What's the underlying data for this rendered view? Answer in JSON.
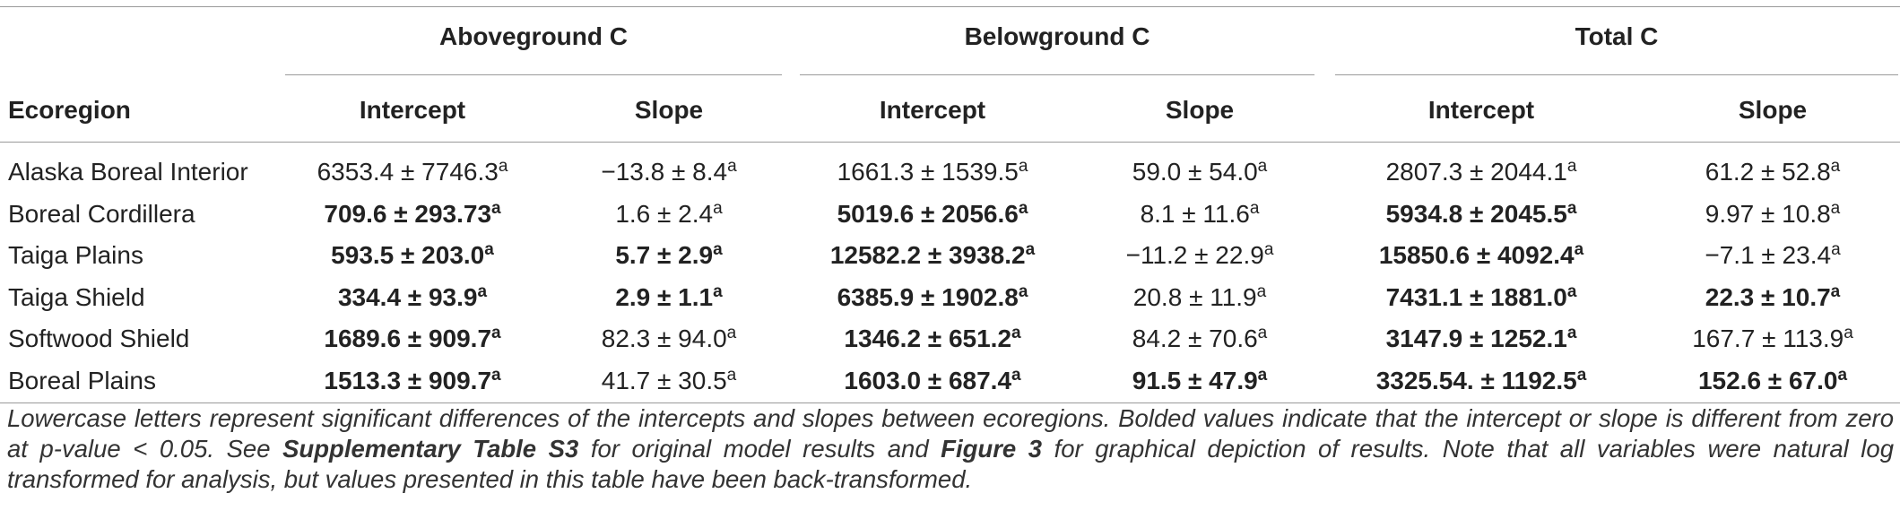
{
  "header": {
    "groups": [
      "Aboveground C",
      "Belowground C",
      "Total C"
    ],
    "columns": [
      "Ecoregion",
      "Intercept",
      "Slope",
      "Intercept",
      "Slope",
      "Intercept",
      "Slope"
    ]
  },
  "table": {
    "rows": [
      {
        "ecoregion": "Alaska Boreal Interior",
        "cells": [
          {
            "text": "6353.4 ± 7746.3",
            "sup": "a",
            "bold": false
          },
          {
            "text": "−13.8 ± 8.4",
            "sup": "a",
            "bold": false
          },
          {
            "text": "1661.3 ± 1539.5",
            "sup": "a",
            "bold": false
          },
          {
            "text": "59.0 ± 54.0",
            "sup": "a",
            "bold": false
          },
          {
            "text": "2807.3 ± 2044.1",
            "sup": "a",
            "bold": false
          },
          {
            "text": "61.2 ± 52.8",
            "sup": "a",
            "bold": false
          }
        ]
      },
      {
        "ecoregion": "Boreal Cordillera",
        "cells": [
          {
            "text": "709.6 ± 293.73",
            "sup": "a",
            "bold": true
          },
          {
            "text": "1.6 ± 2.4",
            "sup": "a",
            "bold": false
          },
          {
            "text": "5019.6 ± 2056.6",
            "sup": "a",
            "bold": true
          },
          {
            "text": "8.1 ± 11.6",
            "sup": "a",
            "bold": false
          },
          {
            "text": "5934.8 ± 2045.5",
            "sup": "a",
            "bold": true
          },
          {
            "text": "9.97 ± 10.8",
            "sup": "a",
            "bold": false
          }
        ]
      },
      {
        "ecoregion": "Taiga Plains",
        "cells": [
          {
            "text": "593.5 ± 203.0",
            "sup": "a",
            "bold": true
          },
          {
            "text": "5.7 ± 2.9",
            "sup": "a",
            "bold": true
          },
          {
            "text": "12582.2 ± 3938.2",
            "sup": "a",
            "bold": true
          },
          {
            "text": "−11.2 ± 22.9",
            "sup": "a",
            "bold": false
          },
          {
            "text": "15850.6 ± 4092.4",
            "sup": "a",
            "bold": true
          },
          {
            "text": "−7.1 ± 23.4",
            "sup": "a",
            "bold": false
          }
        ]
      },
      {
        "ecoregion": "Taiga Shield",
        "cells": [
          {
            "text": "334.4 ± 93.9",
            "sup": "a",
            "bold": true
          },
          {
            "text": "2.9 ± 1.1",
            "sup": "a",
            "bold": true
          },
          {
            "text": "6385.9 ± 1902.8",
            "sup": "a",
            "bold": true
          },
          {
            "text": "20.8 ± 11.9",
            "sup": "a",
            "bold": false
          },
          {
            "text": "7431.1 ± 1881.0",
            "sup": "a",
            "bold": true
          },
          {
            "text": "22.3 ± 10.7",
            "sup": "a",
            "bold": true
          }
        ]
      },
      {
        "ecoregion": "Softwood Shield",
        "cells": [
          {
            "text": "1689.6 ± 909.7",
            "sup": "a",
            "bold": true
          },
          {
            "text": "82.3 ± 94.0",
            "sup": "a",
            "bold": false
          },
          {
            "text": "1346.2 ± 651.2",
            "sup": "a",
            "bold": true
          },
          {
            "text": "84.2 ± 70.6",
            "sup": "a",
            "bold": false
          },
          {
            "text": "3147.9 ± 1252.1",
            "sup": "a",
            "bold": true
          },
          {
            "text": "167.7 ± 113.9",
            "sup": "a",
            "bold": false
          }
        ]
      },
      {
        "ecoregion": "Boreal Plains",
        "cells": [
          {
            "text": "1513.3 ± 909.7",
            "sup": "a",
            "bold": true
          },
          {
            "text": "41.7 ± 30.5",
            "sup": "a",
            "bold": false
          },
          {
            "text": "1603.0 ± 687.4",
            "sup": "a",
            "bold": true
          },
          {
            "text": "91.5 ± 47.9",
            "sup": "a",
            "bold": true
          },
          {
            "text": "3325.54. ± 1192.5",
            "sup": "a",
            "bold": true
          },
          {
            "text": "152.6 ± 67.0",
            "sup": "a",
            "bold": true
          }
        ]
      }
    ]
  },
  "caption": [
    {
      "text": "Lowercase letters represent significant differences of the intercepts and slopes between ecoregions. Bolded values indicate that the intercept or slope is different from zero at p-value < 0.05. See ",
      "bold": false
    },
    {
      "text": "Supplementary Table S3",
      "bold": true
    },
    {
      "text": " for original model results and ",
      "bold": false
    },
    {
      "text": "Figure 3",
      "bold": true
    },
    {
      "text": " for graphical depiction of results. Note that all variables were natural log transformed for analysis, but values presented in this table have been back-transformed.",
      "bold": false
    }
  ]
}
